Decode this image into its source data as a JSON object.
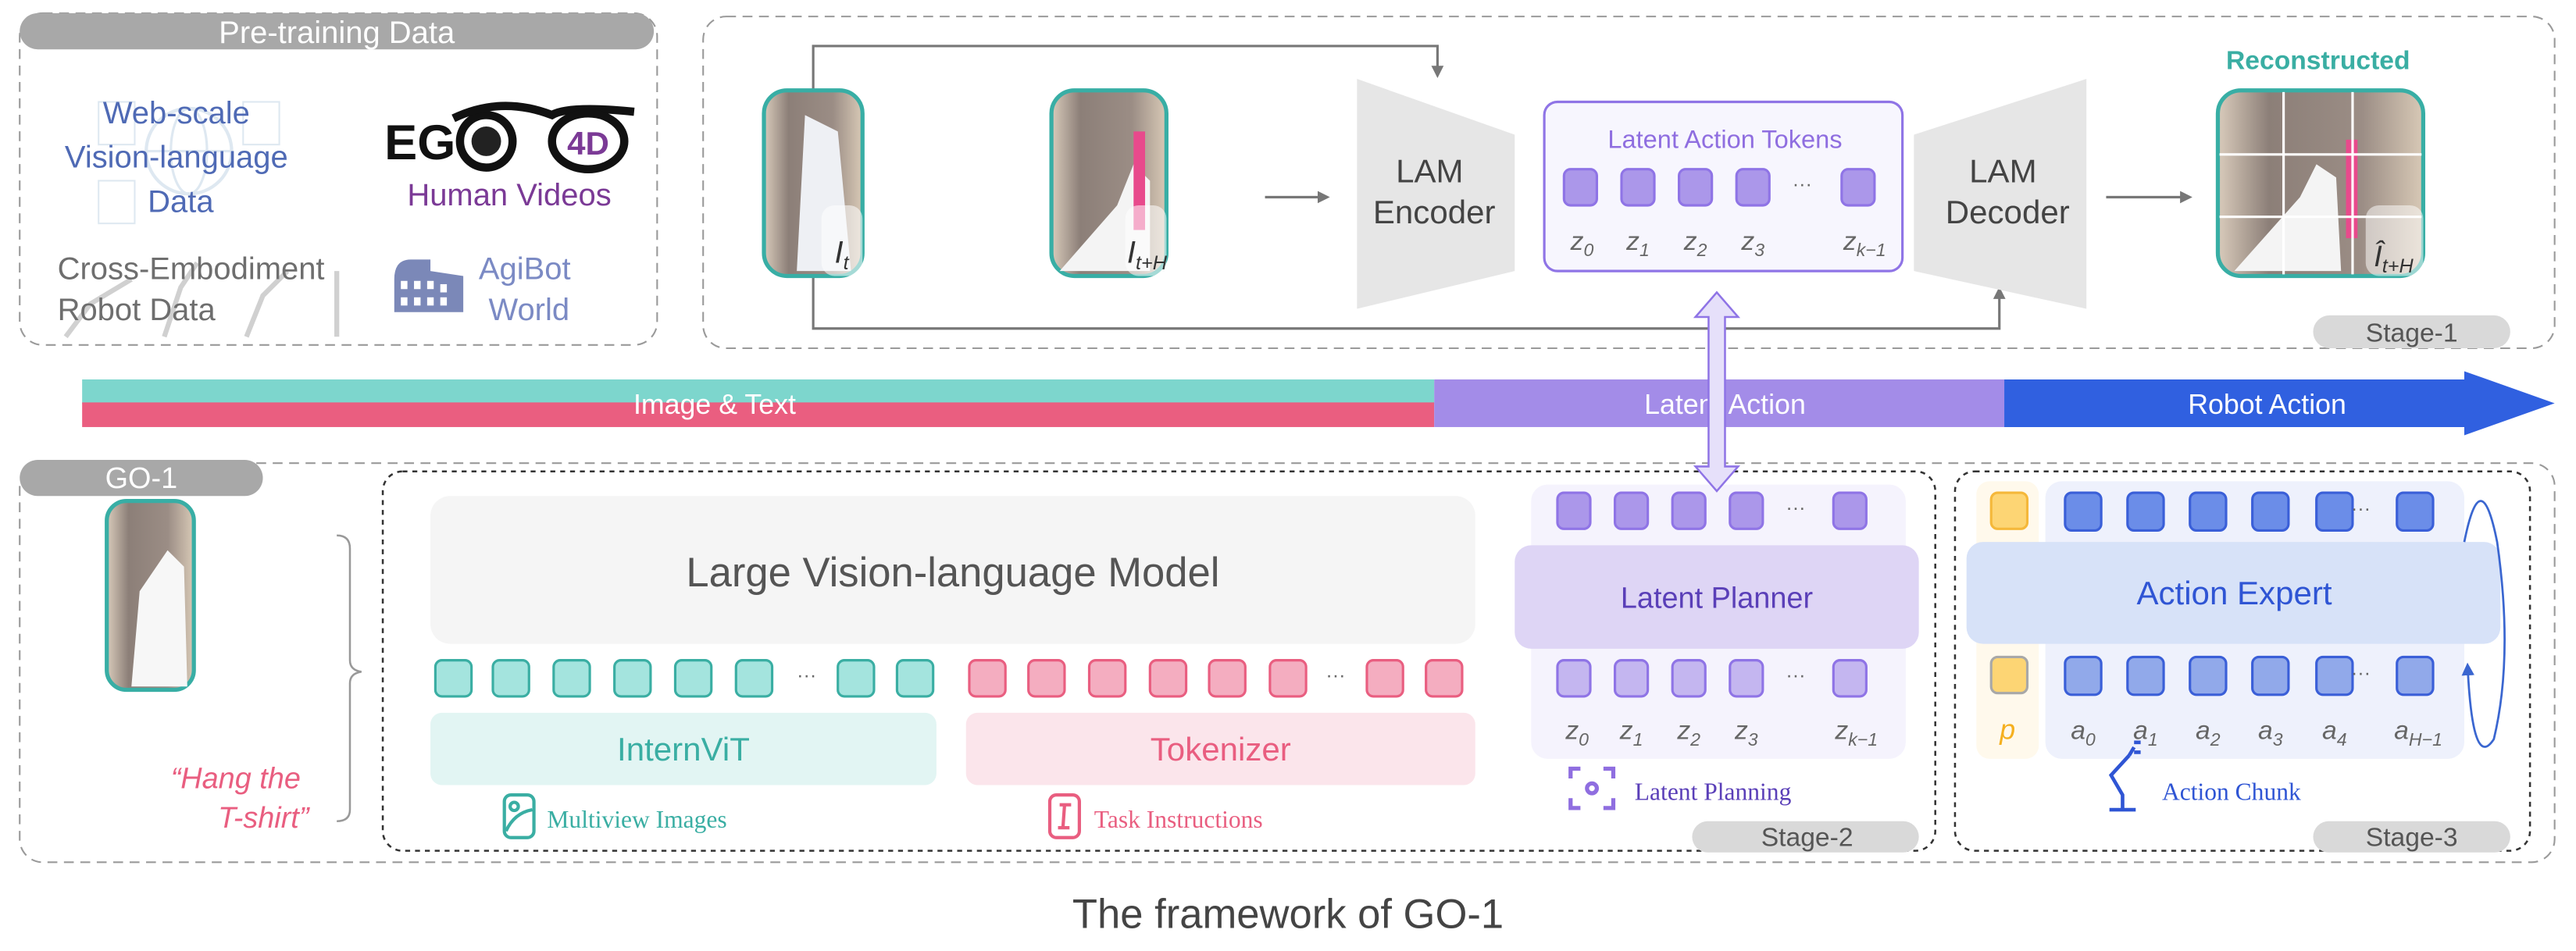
{
  "pretraining": {
    "title": "Pre-training Data",
    "web_scale": [
      "Web-scale",
      "Vision-language",
      "Data"
    ],
    "ego_logo": "EGO4D",
    "human_videos": "Human Videos",
    "cross_embodiment": [
      "Cross-Embodiment",
      "Robot Data"
    ],
    "agibot": [
      "AgiBot",
      "World"
    ]
  },
  "stage1": {
    "image_t": {
      "base": "I",
      "sub": "t"
    },
    "image_tH": {
      "base": "I",
      "sub": "t+H"
    },
    "encoder": [
      "LAM",
      "Encoder"
    ],
    "tokens_title": "Latent Action Tokens",
    "token_labels": [
      {
        "base": "z",
        "sub": "0"
      },
      {
        "base": "z",
        "sub": "1"
      },
      {
        "base": "z",
        "sub": "2"
      },
      {
        "base": "z",
        "sub": "3"
      },
      {
        "base": "z",
        "sub": "k−1"
      }
    ],
    "decoder": [
      "LAM",
      "Decoder"
    ],
    "reconstructed": "Reconstructed",
    "image_recon": {
      "base": "Î",
      "sub": "t+H"
    },
    "stage_label": "Stage-1"
  },
  "bar": {
    "image_text": "Image & Text",
    "latent_action": "Latent Action",
    "robot_action": "Robot Action",
    "colors": {
      "teal": "#7dd6cd",
      "pink": "#ea5e80",
      "purple": "#a38ce8",
      "blue": "#3060e0"
    }
  },
  "go1": {
    "title": "GO-1",
    "instruction": [
      "“Hang the",
      "T-shirt”"
    ],
    "vlm": "Large Vision-language Model",
    "internvit": "InternViT",
    "tokenizer": "Tokenizer",
    "multiview": "Multiview Images",
    "task_instructions": "Task Instructions",
    "latent_planner": "Latent Planner",
    "planner_labels": [
      {
        "base": "z",
        "sub": "0"
      },
      {
        "base": "z",
        "sub": "1"
      },
      {
        "base": "z",
        "sub": "2"
      },
      {
        "base": "z",
        "sub": "3"
      },
      {
        "base": "z",
        "sub": "k−1"
      }
    ],
    "latent_planning": "Latent Planning",
    "stage2_label": "Stage-2",
    "action_expert": "Action Expert",
    "proprio_label": "p",
    "action_labels": [
      {
        "base": "a",
        "sub": "0"
      },
      {
        "base": "a",
        "sub": "1"
      },
      {
        "base": "a",
        "sub": "2"
      },
      {
        "base": "a",
        "sub": "3"
      },
      {
        "base": "a",
        "sub": "4"
      },
      {
        "base": "a",
        "sub": "H−1"
      }
    ],
    "action_chunk": "Action Chunk",
    "stage3_label": "Stage-3",
    "ellipsis": "···"
  },
  "caption": "The framework of GO-1"
}
